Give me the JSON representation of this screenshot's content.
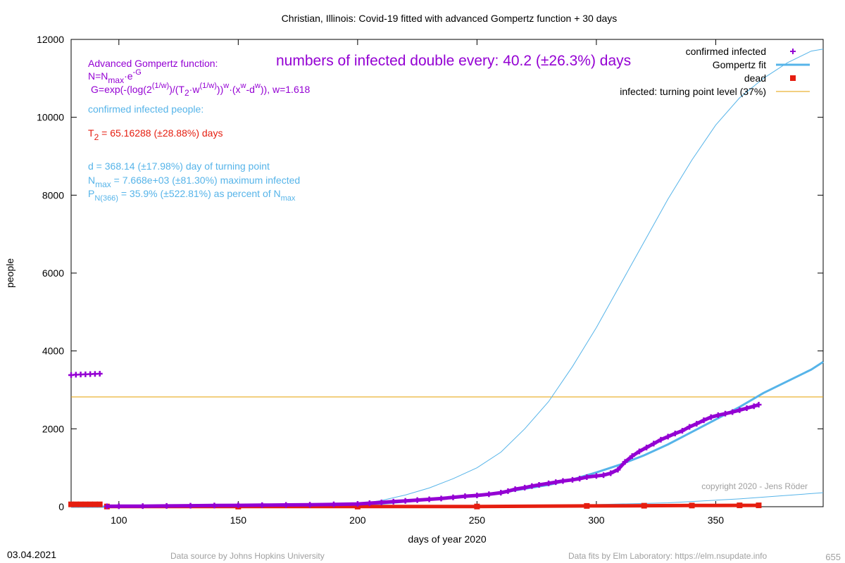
{
  "title": "Christian,  Illinois: Covid-19 fitted with advanced Gompertz function + 30 days",
  "xlabel": "days of year 2020",
  "ylabel": "people",
  "footer": {
    "date": "03.04.2021",
    "source": "Data source by Johns Hopkins University",
    "fits": "Data fits by Elm Laboratory: https://elm.nsupdate.info",
    "page_number": "655"
  },
  "copyright": "copyright 2020 - Jens Röder",
  "headline": "numbers of infected double every: 40.2 (±26.3%) days",
  "annotations": {
    "gompertz_title": "Advanced Gompertz function:",
    "formula_n": "N=N",
    "formula_n_sub": "max",
    "formula_n_rest": "·e",
    "formula_n_sup": "-G",
    "formula_g_part1": "G=exp(-(log(2",
    "formula_g_sup1": "(1/w)",
    "formula_g_part2": ")/(T",
    "formula_g_sub2": "2",
    "formula_g_part3": "·w",
    "formula_g_sup3": "(1/w)",
    "formula_g_part4": "))",
    "formula_g_sup4": "w",
    "formula_g_part5": "·(x",
    "formula_g_sup5": "w",
    "formula_g_part6": "-d",
    "formula_g_sup6": "w",
    "formula_g_part7": ")), w=1.618",
    "confirmed_label": "confirmed infected people:",
    "t2_prefix": "T",
    "t2_sub": "2",
    "t2_rest": " = 65.16288 (±28.88%) days",
    "d_line": "d = 368.14 (±17.98%) day of turning point",
    "nmax_prefix": "N",
    "nmax_sub": "max",
    "nmax_rest": " = 7.668e+03 (±81.30%) maximum infected",
    "p_prefix": "P",
    "p_sub": "N(366)",
    "p_rest": " = 35.9% (±522.81%) as percent of N",
    "p_sub2": "max"
  },
  "legend": [
    {
      "label": "confirmed infected",
      "color": "#9400d3",
      "marker": "plus"
    },
    {
      "label": "Gompertz fit",
      "color": "#56b4e9",
      "marker": "line"
    },
    {
      "label": "dead",
      "color": "#e51e10",
      "marker": "square"
    },
    {
      "label": "infected: turning point level (37%)",
      "color": "#e69f00",
      "marker": "line"
    }
  ],
  "colors": {
    "confirmed": "#9400d3",
    "fit": "#56b4e9",
    "dead": "#e51e10",
    "turning": "#e69f00",
    "t2_text": "#e51e10"
  },
  "chart_data": {
    "type": "scatter",
    "xlim": [
      80,
      395
    ],
    "ylim": [
      0,
      12000
    ],
    "xticks": [
      100,
      150,
      200,
      250,
      300,
      350
    ],
    "yticks": [
      0,
      2000,
      4000,
      6000,
      8000,
      10000,
      12000
    ],
    "legend_position": "top-right",
    "grid": false,
    "turning_point_level": 2820,
    "series": [
      {
        "name": "confirmed infected",
        "points": [
          [
            80,
            3380
          ],
          [
            82,
            3390
          ],
          [
            84,
            3395
          ],
          [
            86,
            3400
          ],
          [
            88,
            3405
          ],
          [
            90,
            3410
          ],
          [
            92,
            3415
          ],
          [
            95,
            10
          ],
          [
            100,
            12
          ],
          [
            110,
            15
          ],
          [
            120,
            20
          ],
          [
            130,
            25
          ],
          [
            140,
            30
          ],
          [
            150,
            35
          ],
          [
            160,
            40
          ],
          [
            170,
            45
          ],
          [
            180,
            50
          ],
          [
            190,
            60
          ],
          [
            200,
            70
          ],
          [
            205,
            90
          ],
          [
            210,
            110
          ],
          [
            215,
            130
          ],
          [
            220,
            150
          ],
          [
            225,
            170
          ],
          [
            230,
            190
          ],
          [
            235,
            210
          ],
          [
            240,
            240
          ],
          [
            245,
            270
          ],
          [
            250,
            290
          ],
          [
            255,
            320
          ],
          [
            260,
            360
          ],
          [
            263,
            400
          ],
          [
            266,
            450
          ],
          [
            270,
            490
          ],
          [
            273,
            530
          ],
          [
            276,
            560
          ],
          [
            280,
            600
          ],
          [
            283,
            630
          ],
          [
            286,
            660
          ],
          [
            290,
            690
          ],
          [
            293,
            720
          ],
          [
            296,
            760
          ],
          [
            300,
            790
          ],
          [
            303,
            810
          ],
          [
            306,
            860
          ],
          [
            309,
            950
          ],
          [
            312,
            1150
          ],
          [
            315,
            1300
          ],
          [
            318,
            1420
          ],
          [
            321,
            1520
          ],
          [
            324,
            1620
          ],
          [
            327,
            1720
          ],
          [
            330,
            1800
          ],
          [
            333,
            1880
          ],
          [
            336,
            1950
          ],
          [
            339,
            2050
          ],
          [
            342,
            2130
          ],
          [
            345,
            2220
          ],
          [
            348,
            2300
          ],
          [
            351,
            2350
          ],
          [
            354,
            2390
          ],
          [
            357,
            2430
          ],
          [
            360,
            2480
          ],
          [
            363,
            2530
          ],
          [
            366,
            2580
          ],
          [
            368,
            2620
          ]
        ]
      },
      {
        "name": "Gompertz fit",
        "points": [
          [
            80,
            0
          ],
          [
            150,
            5
          ],
          [
            190,
            20
          ],
          [
            200,
            40
          ],
          [
            210,
            80
          ],
          [
            220,
            130
          ],
          [
            230,
            180
          ],
          [
            240,
            230
          ],
          [
            250,
            290
          ],
          [
            260,
            360
          ],
          [
            270,
            460
          ],
          [
            280,
            560
          ],
          [
            290,
            700
          ],
          [
            300,
            880
          ],
          [
            310,
            1080
          ],
          [
            320,
            1320
          ],
          [
            330,
            1600
          ],
          [
            340,
            1920
          ],
          [
            350,
            2240
          ],
          [
            360,
            2560
          ],
          [
            370,
            2920
          ],
          [
            380,
            3220
          ],
          [
            390,
            3520
          ],
          [
            395,
            3720
          ]
        ]
      },
      {
        "name": "Gompertz fit (confidence bound)",
        "points": [
          [
            80,
            0
          ],
          [
            170,
            10
          ],
          [
            190,
            25
          ],
          [
            200,
            60
          ],
          [
            210,
            160
          ],
          [
            220,
            300
          ],
          [
            230,
            480
          ],
          [
            240,
            720
          ],
          [
            250,
            1000
          ],
          [
            260,
            1400
          ],
          [
            270,
            2000
          ],
          [
            280,
            2700
          ],
          [
            290,
            3600
          ],
          [
            300,
            4600
          ],
          [
            310,
            5700
          ],
          [
            320,
            6800
          ],
          [
            330,
            7900
          ],
          [
            340,
            8900
          ],
          [
            350,
            9800
          ],
          [
            360,
            10500
          ],
          [
            370,
            11000
          ],
          [
            380,
            11400
          ],
          [
            390,
            11700
          ],
          [
            395,
            11750
          ]
        ]
      },
      {
        "name": "Gompertz fit (lower bound)",
        "points": [
          [
            80,
            0
          ],
          [
            250,
            10
          ],
          [
            290,
            40
          ],
          [
            330,
            100
          ],
          [
            360,
            200
          ],
          [
            395,
            360
          ]
        ]
      },
      {
        "name": "dead",
        "points": [
          [
            80,
            60
          ],
          [
            82,
            60
          ],
          [
            84,
            60
          ],
          [
            86,
            60
          ],
          [
            88,
            60
          ],
          [
            90,
            60
          ],
          [
            92,
            60
          ],
          [
            95,
            5
          ],
          [
            150,
            3
          ],
          [
            200,
            3
          ],
          [
            250,
            5
          ],
          [
            296,
            20
          ],
          [
            320,
            25
          ],
          [
            340,
            30
          ],
          [
            360,
            35
          ],
          [
            368,
            35
          ]
        ]
      }
    ]
  }
}
